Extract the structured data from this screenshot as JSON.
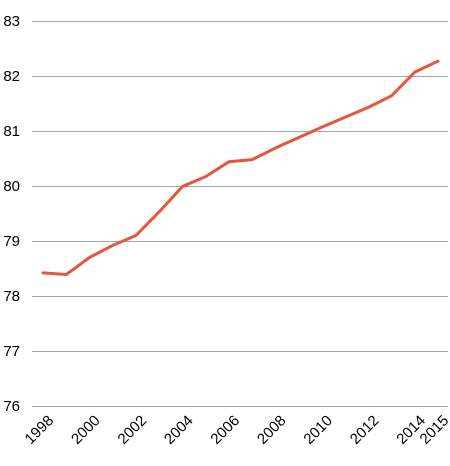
{
  "chart_data": {
    "type": "line",
    "title": "",
    "xlabel": "",
    "ylabel": "",
    "x": [
      1998,
      1999,
      2000,
      2001,
      2002,
      2003,
      2004,
      2005,
      2006,
      2007,
      2008,
      2009,
      2010,
      2011,
      2012,
      2013,
      2014,
      2015
    ],
    "x_tick_labels": [
      "1998",
      "2000",
      "2002",
      "2004",
      "2006",
      "2008",
      "2010",
      "2012",
      "2014",
      "2015"
    ],
    "ylim": [
      76,
      83
    ],
    "y_ticks": [
      "76",
      "77",
      "78",
      "79",
      "80",
      "81",
      "82",
      "83"
    ],
    "grid": "horizontal",
    "series": [
      {
        "color": "#e4573b",
        "values": [
          78.42,
          78.39,
          78.7,
          78.92,
          79.1,
          79.53,
          79.99,
          80.17,
          80.44,
          80.48,
          80.69,
          80.88,
          81.07,
          81.25,
          81.43,
          81.64,
          82.07,
          82.27
        ]
      }
    ]
  }
}
